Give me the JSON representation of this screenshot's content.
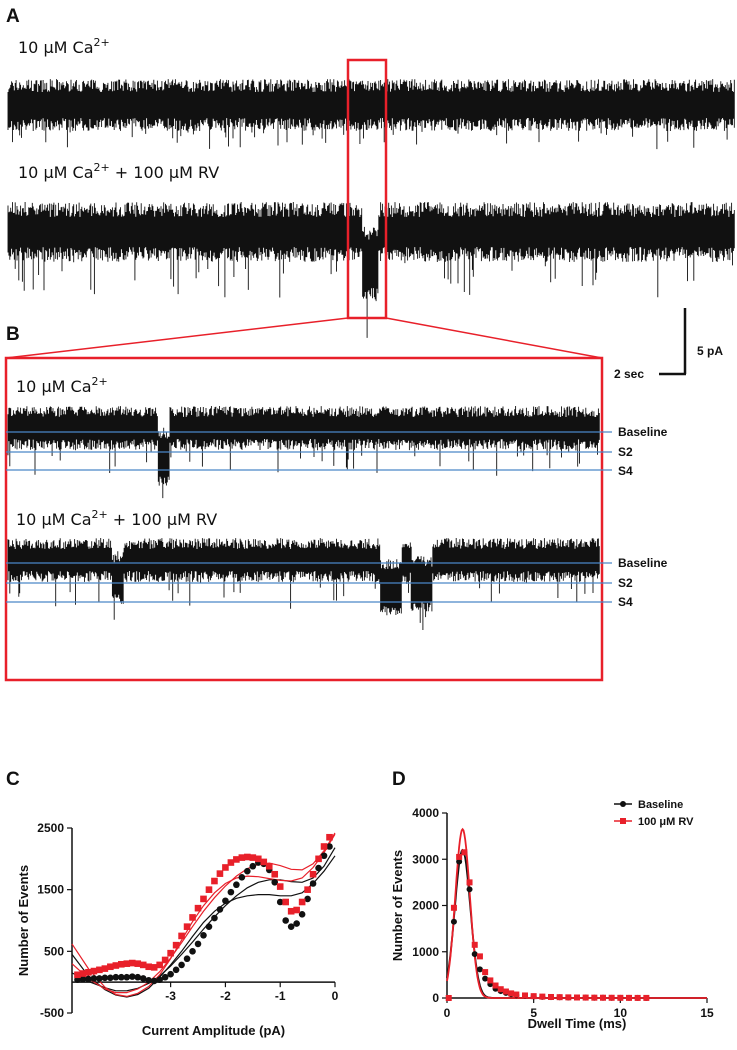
{
  "panels": {
    "A": {
      "label": "A",
      "condition_1": "10 μM Ca",
      "condition_1_sup": "2+",
      "condition_2": "10 μM Ca",
      "condition_2_sup": "2+",
      "condition_2_suffix": " + 100 μM RV"
    },
    "B": {
      "label": "B",
      "condition_1": "10 μM Ca",
      "condition_1_sup": "2+",
      "condition_2": "10 μM Ca",
      "condition_2_sup": "2+",
      "condition_2_suffix": " + 100 μM RV",
      "levels": [
        "Baseline",
        "S2",
        "S4"
      ]
    },
    "scale_bar": {
      "time": "2 sec",
      "current": "5 pA"
    },
    "highlight_color": "#e8202a",
    "level_line_color": "#4a86c8"
  },
  "chart_data": [
    {
      "panel": "C",
      "type": "scatter",
      "xlabel": "Current Amplitude (pA)",
      "ylabel": "Number of Events",
      "xlim": [
        -4.8,
        0
      ],
      "ylim": [
        -500,
        2500
      ],
      "xticks": [
        -3,
        -2,
        -1,
        0
      ],
      "yticks": [
        -500,
        500,
        1500,
        2500
      ],
      "series": [
        {
          "color": "#111111",
          "marker": "circle",
          "x": [
            -4.7,
            -4.6,
            -4.5,
            -4.4,
            -4.3,
            -4.2,
            -4.1,
            -4.0,
            -3.9,
            -3.8,
            -3.7,
            -3.6,
            -3.5,
            -3.4,
            -3.3,
            -3.2,
            -3.1,
            -3.0,
            -2.9,
            -2.8,
            -2.7,
            -2.6,
            -2.5,
            -2.4,
            -2.3,
            -2.2,
            -2.1,
            -2.0,
            -1.9,
            -1.8,
            -1.7,
            -1.6,
            -1.5,
            -1.4,
            -1.3,
            -1.2,
            -1.1,
            -1.0,
            -0.9,
            -0.8,
            -0.7,
            -0.6,
            -0.5,
            -0.4,
            -0.3,
            -0.2,
            -0.1
          ],
          "y": [
            40,
            50,
            50,
            60,
            60,
            70,
            70,
            80,
            80,
            80,
            90,
            80,
            60,
            30,
            20,
            40,
            80,
            130,
            200,
            280,
            380,
            500,
            620,
            760,
            900,
            1040,
            1180,
            1320,
            1460,
            1580,
            1700,
            1800,
            1880,
            1940,
            1920,
            1820,
            1620,
            1300,
            1000,
            900,
            950,
            1100,
            1350,
            1600,
            1850,
            2050,
            2200
          ]
        },
        {
          "color": "#e8202a",
          "marker": "square",
          "x": [
            -4.7,
            -4.6,
            -4.5,
            -4.4,
            -4.3,
            -4.2,
            -4.1,
            -4.0,
            -3.9,
            -3.8,
            -3.7,
            -3.6,
            -3.5,
            -3.4,
            -3.3,
            -3.2,
            -3.1,
            -3.0,
            -2.9,
            -2.8,
            -2.7,
            -2.6,
            -2.5,
            -2.4,
            -2.3,
            -2.2,
            -2.1,
            -2.0,
            -1.9,
            -1.8,
            -1.7,
            -1.6,
            -1.5,
            -1.4,
            -1.3,
            -1.2,
            -1.1,
            -1.0,
            -0.9,
            -0.8,
            -0.7,
            -0.6,
            -0.5,
            -0.4,
            -0.3,
            -0.2,
            -0.1
          ],
          "y": [
            120,
            140,
            160,
            180,
            200,
            220,
            250,
            270,
            290,
            300,
            310,
            300,
            280,
            250,
            240,
            280,
            360,
            470,
            600,
            750,
            900,
            1050,
            1200,
            1350,
            1500,
            1640,
            1760,
            1860,
            1940,
            1990,
            2020,
            2030,
            2020,
            2000,
            1950,
            1880,
            1750,
            1550,
            1300,
            1150,
            1170,
            1300,
            1500,
            1750,
            2000,
            2200,
            2350
          ]
        }
      ],
      "fit_curves": [
        {
          "color": "#111111",
          "x": [
            -4.8,
            -4.5,
            -4.2,
            -4.0,
            -3.8,
            -3.6,
            -3.4,
            -3.2,
            -3.0,
            -2.8,
            -2.6,
            -2.4,
            -2.2,
            -2.0,
            -1.8,
            -1.6,
            -1.4,
            -1.2,
            -1.0,
            -0.8,
            -0.6,
            -0.4,
            -0.2,
            0
          ],
          "y": [
            450,
            100,
            -120,
            -210,
            -240,
            -200,
            -100,
            80,
            280,
            500,
            740,
            970,
            1150,
            1280,
            1360,
            1400,
            1420,
            1420,
            1400,
            1400,
            1450,
            1600,
            1800,
            2050
          ]
        },
        {
          "color": "#111111",
          "x": [
            -4.8,
            -4.5,
            -4.2,
            -4.0,
            -3.8,
            -3.6,
            -3.4,
            -3.2,
            -3.0,
            -2.8,
            -2.6,
            -2.4,
            -2.2,
            -2.0,
            -1.8,
            -1.6,
            -1.4,
            -1.2,
            -1.0,
            -0.8,
            -0.6,
            -0.4,
            -0.2,
            0
          ],
          "y": [
            150,
            10,
            -90,
            -140,
            -140,
            -100,
            -20,
            100,
            260,
            450,
            650,
            860,
            1060,
            1240,
            1400,
            1530,
            1620,
            1660,
            1660,
            1630,
            1620,
            1690,
            1880,
            2180
          ]
        },
        {
          "color": "#e8202a",
          "x": [
            -4.8,
            -4.5,
            -4.2,
            -4.0,
            -3.8,
            -3.6,
            -3.4,
            -3.2,
            -3.0,
            -2.8,
            -2.6,
            -2.4,
            -2.2,
            -2.0,
            -1.8,
            -1.6,
            -1.4,
            -1.2,
            -1.0,
            -0.8,
            -0.6,
            -0.4,
            -0.2,
            0
          ],
          "y": [
            620,
            220,
            -80,
            -200,
            -230,
            -180,
            -70,
            120,
            380,
            680,
            980,
            1240,
            1450,
            1600,
            1690,
            1720,
            1710,
            1680,
            1650,
            1640,
            1690,
            1860,
            2100,
            2400
          ]
        },
        {
          "color": "#e8202a",
          "x": [
            -4.8,
            -4.5,
            -4.2,
            -4.0,
            -3.8,
            -3.6,
            -3.4,
            -3.2,
            -3.0,
            -2.8,
            -2.6,
            -2.4,
            -2.2,
            -2.0,
            -1.8,
            -1.6,
            -1.4,
            -1.2,
            -1.0,
            -0.8,
            -0.6,
            -0.4,
            -0.2,
            0
          ],
          "y": [
            300,
            60,
            -110,
            -170,
            -170,
            -110,
            0,
            170,
            390,
            640,
            900,
            1150,
            1370,
            1560,
            1720,
            1840,
            1910,
            1930,
            1890,
            1830,
            1820,
            1920,
            2130,
            2420
          ]
        }
      ]
    },
    {
      "panel": "D",
      "type": "scatter",
      "xlabel": "Dwell Time (ms)",
      "ylabel": "Number of Events",
      "xlim": [
        0,
        15
      ],
      "ylim": [
        0,
        4000
      ],
      "xticks": [
        0,
        5,
        10,
        15
      ],
      "yticks": [
        0,
        1000,
        2000,
        3000,
        4000
      ],
      "legend": [
        "Baseline",
        "100 μM RV"
      ],
      "legend_position": "top-right",
      "series": [
        {
          "name": "Baseline",
          "color": "#111111",
          "marker": "circle",
          "x": [
            0.1,
            0.4,
            0.7,
            1.0,
            1.3,
            1.6,
            1.9,
            2.2,
            2.5,
            2.8,
            3.1,
            3.4,
            3.7,
            4.0,
            4.5,
            5.0,
            5.5,
            6.0,
            6.5,
            7.0,
            7.5,
            8.0,
            8.5,
            9.0,
            9.5,
            10.0,
            10.5,
            11.0,
            11.5
          ],
          "y": [
            0,
            1650,
            2950,
            3150,
            2350,
            950,
            620,
            420,
            300,
            200,
            150,
            110,
            80,
            60,
            45,
            35,
            25,
            20,
            15,
            12,
            10,
            8,
            6,
            5,
            4,
            3,
            2,
            2,
            1
          ]
        },
        {
          "name": "100 μM RV",
          "color": "#e8202a",
          "marker": "square",
          "x": [
            0.1,
            0.4,
            0.7,
            1.0,
            1.3,
            1.6,
            1.9,
            2.2,
            2.5,
            2.8,
            3.1,
            3.4,
            3.7,
            4.0,
            4.5,
            5.0,
            5.5,
            6.0,
            6.5,
            7.0,
            7.5,
            8.0,
            8.5,
            9.0,
            9.5,
            10.0,
            10.5,
            11.0,
            11.5
          ],
          "y": [
            0,
            1950,
            3050,
            3150,
            2500,
            1150,
            900,
            560,
            380,
            270,
            190,
            140,
            100,
            75,
            55,
            40,
            30,
            22,
            18,
            14,
            11,
            9,
            7,
            6,
            5,
            4,
            3,
            2,
            2
          ]
        }
      ],
      "fit_curves": [
        {
          "color": "#111111",
          "mu": 0.9,
          "sigma": 0.45,
          "peak": 3200
        },
        {
          "color": "#e8202a",
          "mu": 0.9,
          "sigma": 0.42,
          "peak": 3650
        }
      ]
    }
  ]
}
